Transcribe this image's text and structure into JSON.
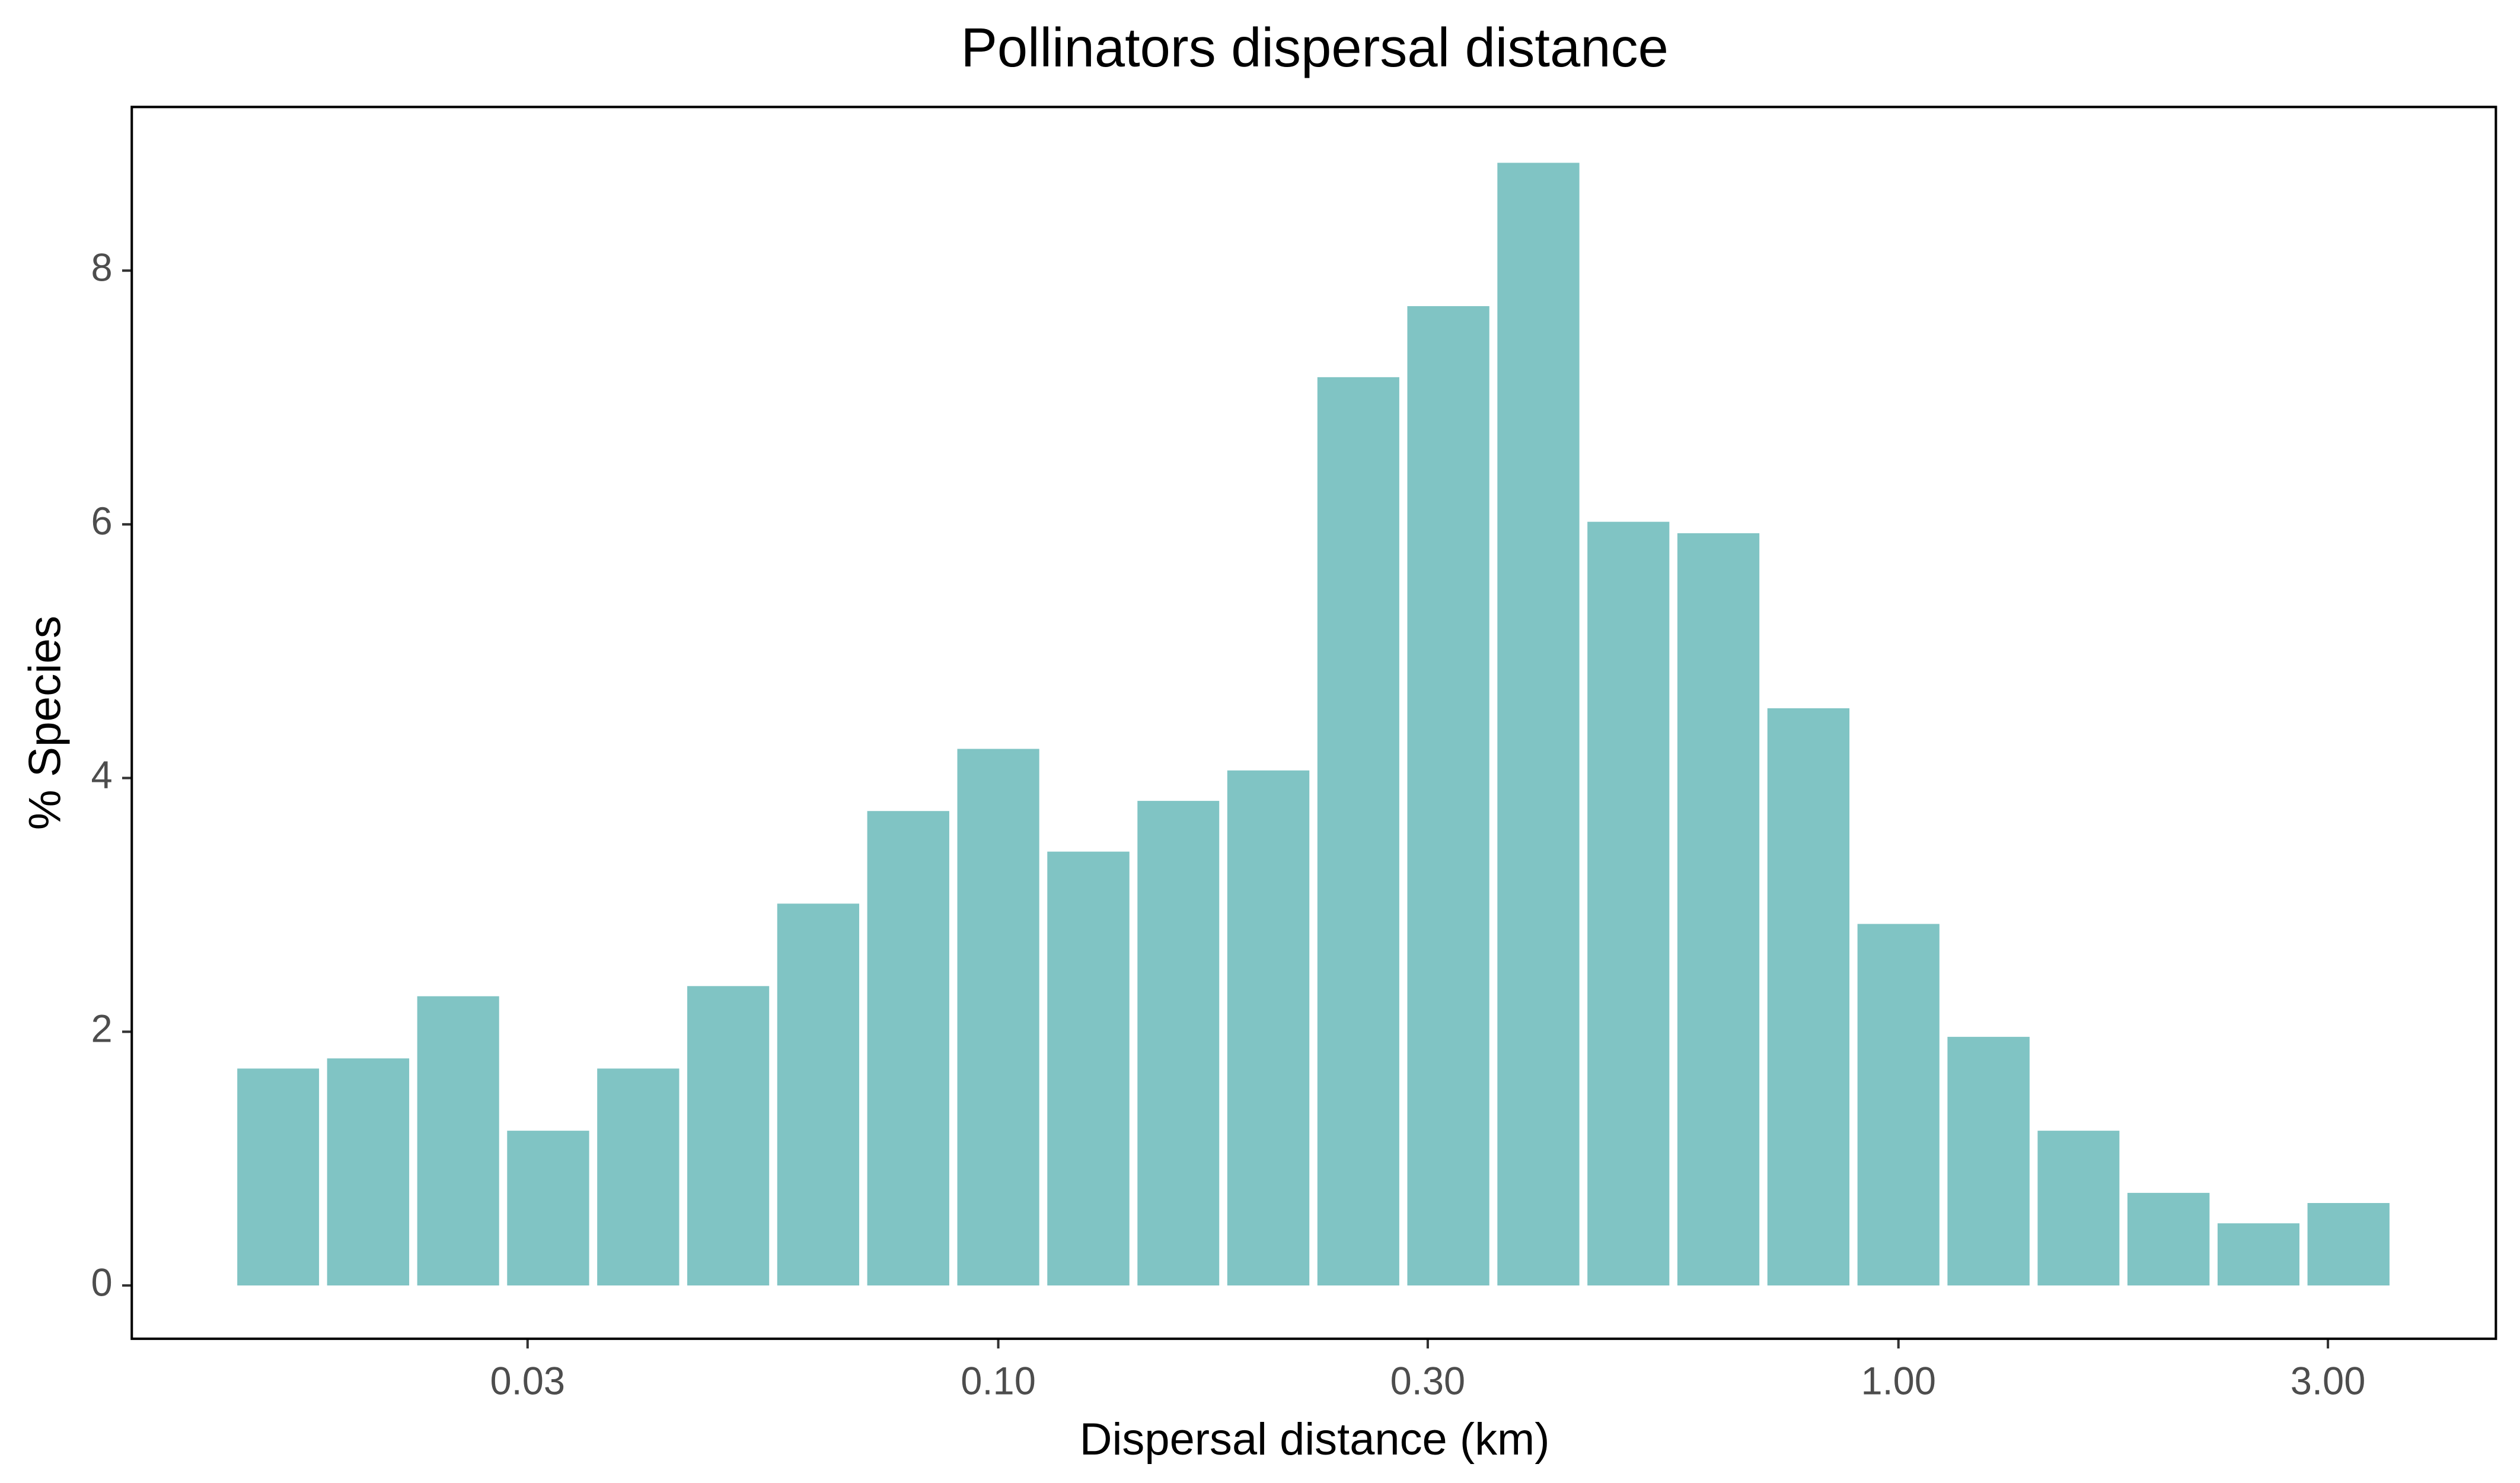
{
  "chart_data": {
    "type": "histogram",
    "title": "Pollinators dispersal distance",
    "x_label": "Dispersal distance (km)",
    "y_label": "% Species",
    "xscale": "log",
    "bins": [
      0.01413,
      0.01778,
      0.02239,
      0.02818,
      0.03548,
      0.04467,
      0.05623,
      0.07079,
      0.08913,
      0.1122,
      0.1413,
      0.1778,
      0.2239,
      0.2818,
      0.3548,
      0.4467,
      0.5623,
      0.7079,
      0.8913,
      1.122,
      1.413,
      1.778,
      2.239,
      2.818,
      3.548
    ],
    "values": [
      1.71,
      1.79,
      2.28,
      1.22,
      1.71,
      2.36,
      3.01,
      3.74,
      4.23,
      3.42,
      3.82,
      4.06,
      7.16,
      7.72,
      8.85,
      6.02,
      5.93,
      4.55,
      2.85,
      1.96,
      1.22,
      0.73,
      0.49,
      0.65
    ],
    "color": "#80c4c4",
    "xlim": [
      0.0109,
      4.61
    ],
    "ylim": [
      -0.42,
      9.29
    ],
    "xticks": [
      0.03,
      {
        "value": 0.1,
        "label": "0.10"
      },
      {
        "value": 0.3,
        "label": "0.30"
      },
      {
        "value": 1,
        "label": "1.00"
      },
      {
        "value": 3,
        "label": "3.00"
      }
    ],
    "yticks": [
      0,
      2,
      4,
      6,
      8
    ],
    "grid": false
  }
}
